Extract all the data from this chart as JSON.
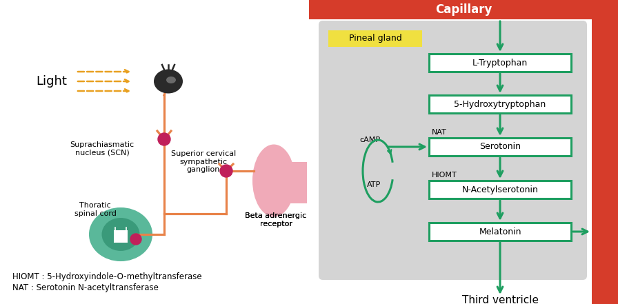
{
  "bg_color": "#ffffff",
  "capillary_color": "#d63c2a",
  "capillary_text": "Capillary",
  "capillary_text_color": "#ffffff",
  "pineal_bg": "#d4d4d4",
  "pineal_label_bg": "#f0e040",
  "pineal_label_text": "Pineal gland",
  "box_color": "#ffffff",
  "box_border": "#1e9e60",
  "arrow_color": "#1e9e60",
  "boxes": [
    "L-Tryptophan",
    "5-Hydroxytryptophan",
    "Serotonin",
    "N-Acetylserotonin",
    "Melatonin"
  ],
  "orange_color": "#e8834a",
  "pink_color": "#f0aab8",
  "teal_color": "#5ab89a",
  "teal_dark": "#3a9a7a",
  "crimson_color": "#c0205a",
  "light_text": "Light",
  "scn_text": "Suprachiasmatic\nnucleus (SCN)",
  "thoracic_text": "Thoratic\nspinal cord",
  "ganglion_text": "Superior cervical\nsympathetic\nganglion",
  "beta_text": "Beta adrenergic\nreceptor",
  "camp_text": "cAMP",
  "atp_text": "ATP",
  "nat_text": "NAT",
  "hiomt_text": "HIOMT",
  "third_ventricle_text": "Third ventricle",
  "hiomt_full": "HIOMT : 5-Hydroxyindole-O-methyltransferase",
  "nat_full": "NAT : Serotonin N-acetyltransferase"
}
